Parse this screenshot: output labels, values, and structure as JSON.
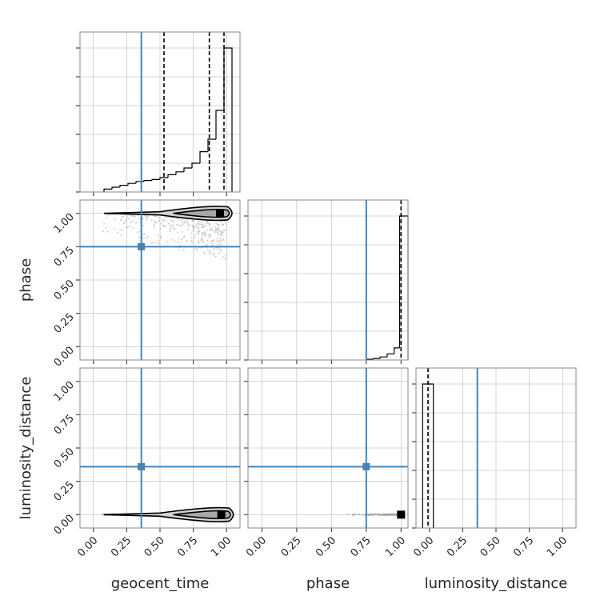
{
  "chart_data": {
    "type": "corner",
    "parameters": [
      "geocent_time",
      "phase",
      "luminosity_distance"
    ],
    "xlabels": [
      "geocent_time",
      "phase",
      "luminosity_distance"
    ],
    "ylabels": [
      "",
      "phase",
      "luminosity_distance"
    ],
    "tick_labels": [
      "0.00",
      "0.25",
      "0.50",
      "0.75",
      "1.00"
    ],
    "truth_color": "#4682b4",
    "truths": {
      "geocent_time": 0.36,
      "phase": 0.75,
      "luminosity_distance": 0.36
    },
    "grid": true,
    "diagonal": [
      {
        "parameter": "geocent_time",
        "xlim": [
          -0.1,
          1.1
        ],
        "bin_edges": [
          0.08,
          0.14,
          0.2,
          0.26,
          0.32,
          0.38,
          0.44,
          0.5,
          0.56,
          0.62,
          0.68,
          0.74,
          0.8,
          0.86,
          0.92,
          0.98,
          1.04
        ],
        "counts": [
          3,
          5,
          7,
          9,
          11,
          12,
          13,
          15,
          18,
          21,
          25,
          30,
          42,
          55,
          85,
          150
        ],
        "quantile_lines": [
          0.53,
          0.87,
          0.98
        ]
      },
      {
        "parameter": "phase",
        "xlim": [
          -0.1,
          1.05
        ],
        "bin_edges": [
          0.75,
          0.8,
          0.85,
          0.9,
          0.95,
          0.99,
          1.05
        ],
        "counts": [
          0.5,
          1,
          2,
          4,
          8,
          95
        ],
        "quantile_lines": [
          1.0
        ]
      },
      {
        "parameter": "luminosity_distance",
        "xlim": [
          -0.1,
          1.1
        ],
        "bin_edges": [
          -0.05,
          -0.01,
          0.03
        ],
        "counts": [
          100,
          100
        ],
        "quantile_lines": [
          -0.01
        ]
      }
    ],
    "panels_2d": [
      {
        "x": "geocent_time",
        "y": "phase",
        "xlim": [
          -0.1,
          1.1
        ],
        "ylim": [
          -0.1,
          1.1
        ],
        "mode": [
          0.95,
          1.0
        ]
      },
      {
        "x": "geocent_time",
        "y": "luminosity_distance",
        "xlim": [
          -0.1,
          1.1
        ],
        "ylim": [
          -0.1,
          1.1
        ],
        "mode": [
          0.96,
          0.0
        ]
      },
      {
        "x": "phase",
        "y": "luminosity_distance",
        "xlim": [
          -0.1,
          1.05
        ],
        "ylim": [
          -0.1,
          1.1
        ],
        "mode": [
          1.0,
          0.0
        ]
      }
    ]
  }
}
